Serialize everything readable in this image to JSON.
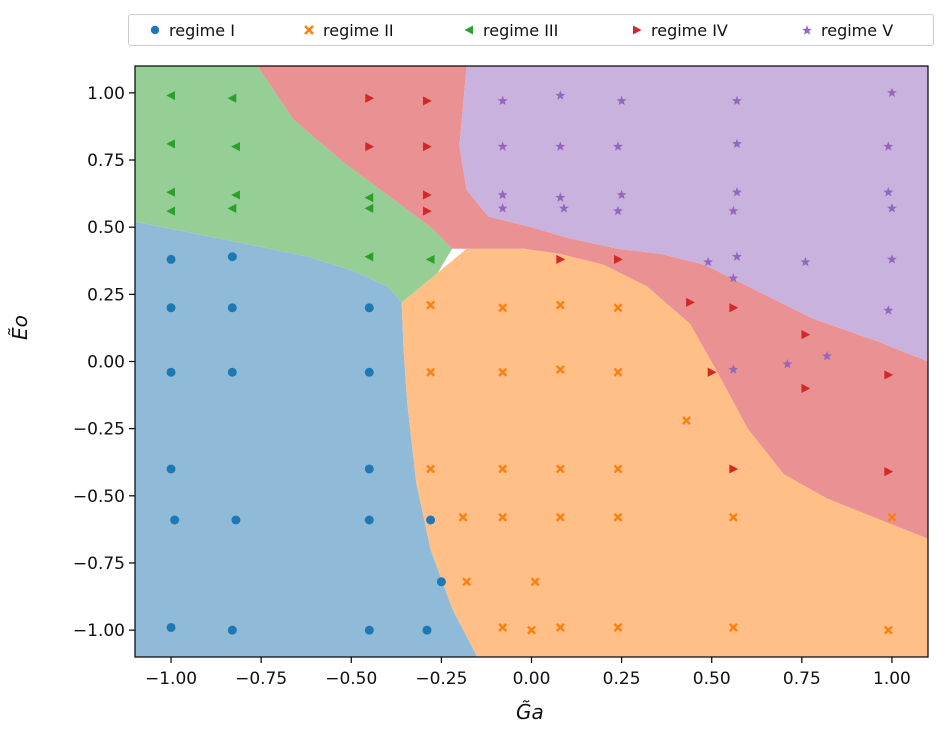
{
  "chart_data": {
    "type": "scatter",
    "title": "",
    "xlabel": "G̃a",
    "ylabel": "Ẽo",
    "xlim": [
      -1.1,
      1.1
    ],
    "ylim": [
      -1.1,
      1.1
    ],
    "xticks": [
      "−1.00",
      "−0.75",
      "−0.50",
      "−0.25",
      "0.00",
      "0.25",
      "0.50",
      "0.75",
      "1.00"
    ],
    "yticks": [
      "−1.00",
      "−0.75",
      "−0.50",
      "−0.25",
      "0.00",
      "0.25",
      "0.50",
      "0.75",
      "1.00"
    ],
    "grid": false,
    "legend_placement": "top",
    "series": [
      {
        "name": "regime I",
        "marker": "circle",
        "color": "#1f77b4",
        "region_color": "#8fbbd9",
        "points": [
          [
            -1.0,
            0.38
          ],
          [
            -0.83,
            0.39
          ],
          [
            -1.0,
            0.2
          ],
          [
            -0.83,
            0.2
          ],
          [
            -0.45,
            0.2
          ],
          [
            -1.0,
            -0.04
          ],
          [
            -0.83,
            -0.04
          ],
          [
            -0.45,
            -0.04
          ],
          [
            -1.0,
            -0.4
          ],
          [
            -0.45,
            -0.4
          ],
          [
            -0.99,
            -0.59
          ],
          [
            -0.82,
            -0.59
          ],
          [
            -0.45,
            -0.59
          ],
          [
            -0.28,
            -0.59
          ],
          [
            -0.25,
            -0.82
          ],
          [
            -1.0,
            -0.99
          ],
          [
            -0.83,
            -1.0
          ],
          [
            -0.45,
            -1.0
          ],
          [
            -0.29,
            -1.0
          ]
        ]
      },
      {
        "name": "regime II",
        "marker": "x",
        "color": "#ff7f0e",
        "region_color": "#ffbf86",
        "points": [
          [
            -0.28,
            0.21
          ],
          [
            -0.08,
            0.2
          ],
          [
            0.08,
            0.21
          ],
          [
            0.24,
            0.2
          ],
          [
            -0.28,
            -0.04
          ],
          [
            -0.08,
            -0.04
          ],
          [
            0.08,
            -0.03
          ],
          [
            0.24,
            -0.04
          ],
          [
            0.43,
            -0.22
          ],
          [
            -0.28,
            -0.4
          ],
          [
            -0.08,
            -0.4
          ],
          [
            0.08,
            -0.4
          ],
          [
            0.24,
            -0.4
          ],
          [
            -0.19,
            -0.58
          ],
          [
            -0.08,
            -0.58
          ],
          [
            0.08,
            -0.58
          ],
          [
            0.24,
            -0.58
          ],
          [
            0.56,
            -0.58
          ],
          [
            1.0,
            -0.58
          ],
          [
            -0.18,
            -0.82
          ],
          [
            0.01,
            -0.82
          ],
          [
            -0.08,
            -0.99
          ],
          [
            0.0,
            -1.0
          ],
          [
            0.08,
            -0.99
          ],
          [
            0.24,
            -0.99
          ],
          [
            0.56,
            -0.99
          ],
          [
            0.99,
            -1.0
          ]
        ]
      },
      {
        "name": "regime III",
        "marker": "triangle-left",
        "color": "#2ca02c",
        "region_color": "#95cf95",
        "points": [
          [
            -1.0,
            0.99
          ],
          [
            -0.83,
            0.98
          ],
          [
            -1.0,
            0.81
          ],
          [
            -0.82,
            0.8
          ],
          [
            -1.0,
            0.63
          ],
          [
            -0.82,
            0.62
          ],
          [
            -0.45,
            0.61
          ],
          [
            -1.0,
            0.56
          ],
          [
            -0.83,
            0.57
          ],
          [
            -0.45,
            0.57
          ],
          [
            -0.45,
            0.39
          ],
          [
            -0.28,
            0.38
          ]
        ]
      },
      {
        "name": "regime IV",
        "marker": "triangle-right",
        "color": "#d62728",
        "region_color": "#ea9293",
        "points": [
          [
            -0.45,
            0.98
          ],
          [
            -0.29,
            0.97
          ],
          [
            -0.45,
            0.8
          ],
          [
            -0.29,
            0.8
          ],
          [
            -0.29,
            0.62
          ],
          [
            -0.29,
            0.56
          ],
          [
            0.08,
            0.38
          ],
          [
            0.24,
            0.38
          ],
          [
            0.44,
            0.22
          ],
          [
            0.56,
            0.2
          ],
          [
            0.76,
            0.1
          ],
          [
            0.5,
            -0.04
          ],
          [
            0.76,
            -0.1
          ],
          [
            0.99,
            -0.05
          ],
          [
            0.56,
            -0.4
          ],
          [
            0.99,
            -0.41
          ]
        ]
      },
      {
        "name": "regime V",
        "marker": "star",
        "color": "#9467bd",
        "region_color": "#c9b2de",
        "points": [
          [
            -0.08,
            0.97
          ],
          [
            0.08,
            0.99
          ],
          [
            0.25,
            0.97
          ],
          [
            0.57,
            0.97
          ],
          [
            1.0,
            1.0
          ],
          [
            -0.08,
            0.8
          ],
          [
            0.08,
            0.8
          ],
          [
            0.24,
            0.8
          ],
          [
            0.57,
            0.81
          ],
          [
            0.99,
            0.8
          ],
          [
            -0.08,
            0.62
          ],
          [
            0.08,
            0.61
          ],
          [
            0.25,
            0.62
          ],
          [
            0.57,
            0.63
          ],
          [
            0.99,
            0.63
          ],
          [
            -0.08,
            0.57
          ],
          [
            0.09,
            0.57
          ],
          [
            0.24,
            0.56
          ],
          [
            0.56,
            0.56
          ],
          [
            1.0,
            0.57
          ],
          [
            0.49,
            0.37
          ],
          [
            0.57,
            0.39
          ],
          [
            0.76,
            0.37
          ],
          [
            1.0,
            0.38
          ],
          [
            0.56,
            0.31
          ],
          [
            0.99,
            0.19
          ],
          [
            0.82,
            0.02
          ],
          [
            0.71,
            -0.01
          ],
          [
            0.56,
            -0.03
          ]
        ]
      }
    ]
  }
}
